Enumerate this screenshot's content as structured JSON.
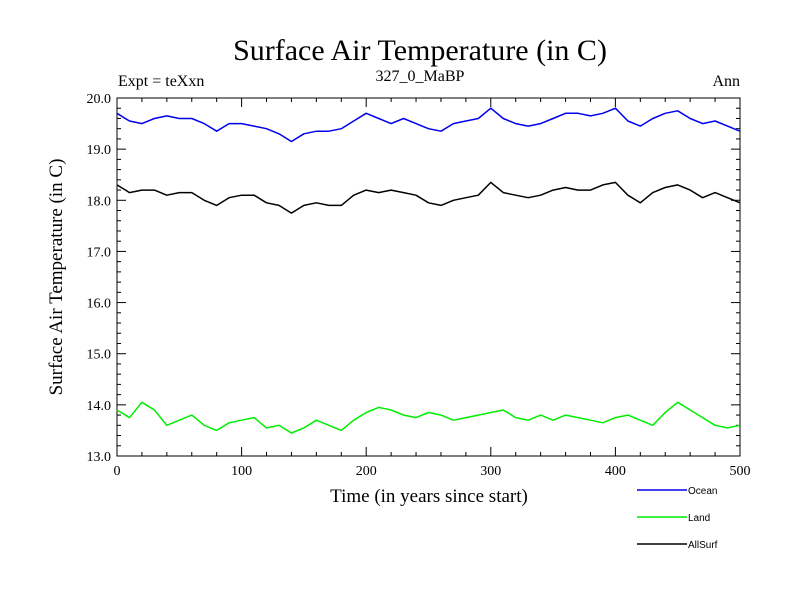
{
  "chart_data": {
    "type": "line",
    "title": "Surface Air Temperature (in C)",
    "experiment_label": "Expt = teXxn",
    "subtitle": "327_0_MaBP",
    "season": "Ann",
    "xlabel": "Time (in years since start)",
    "ylabel": "Surface Air Temperature (in C)",
    "xlim": [
      0,
      500
    ],
    "ylim": [
      13.0,
      20.0
    ],
    "xticks": [
      0,
      100,
      200,
      300,
      400,
      500
    ],
    "xtick_labels": [
      "0",
      "100",
      "200",
      "300",
      "400",
      "500"
    ],
    "yticks": [
      13.0,
      14.0,
      15.0,
      16.0,
      17.0,
      18.0,
      19.0,
      20.0
    ],
    "ytick_labels": [
      "13.0",
      "14.0",
      "15.0",
      "16.0",
      "17.0",
      "18.0",
      "19.0",
      "20.0"
    ],
    "legend_position": "below-right",
    "series": [
      {
        "name": "Ocean",
        "color": "#0000ee",
        "x": [
          0,
          10,
          20,
          30,
          40,
          50,
          60,
          70,
          80,
          90,
          100,
          110,
          120,
          130,
          140,
          150,
          160,
          170,
          180,
          190,
          200,
          210,
          220,
          230,
          240,
          250,
          260,
          270,
          280,
          290,
          300,
          310,
          320,
          330,
          340,
          350,
          360,
          370,
          380,
          390,
          400,
          410,
          420,
          430,
          440,
          450,
          460,
          470,
          480,
          490,
          500
        ],
        "values": [
          19.7,
          19.55,
          19.5,
          19.6,
          19.65,
          19.6,
          19.6,
          19.5,
          19.35,
          19.5,
          19.5,
          19.45,
          19.4,
          19.3,
          19.15,
          19.3,
          19.35,
          19.35,
          19.4,
          19.55,
          19.7,
          19.6,
          19.5,
          19.6,
          19.5,
          19.4,
          19.35,
          19.5,
          19.55,
          19.6,
          19.8,
          19.6,
          19.5,
          19.45,
          19.5,
          19.6,
          19.7,
          19.7,
          19.65,
          19.7,
          19.8,
          19.55,
          19.45,
          19.6,
          19.7,
          19.75,
          19.6,
          19.5,
          19.55,
          19.45,
          19.35
        ]
      },
      {
        "name": "Land",
        "color": "#00ee00",
        "x": [
          0,
          10,
          20,
          30,
          40,
          50,
          60,
          70,
          80,
          90,
          100,
          110,
          120,
          130,
          140,
          150,
          160,
          170,
          180,
          190,
          200,
          210,
          220,
          230,
          240,
          250,
          260,
          270,
          280,
          290,
          300,
          310,
          320,
          330,
          340,
          350,
          360,
          370,
          380,
          390,
          400,
          410,
          420,
          430,
          440,
          450,
          460,
          470,
          480,
          490,
          500
        ],
        "values": [
          13.9,
          13.75,
          14.05,
          13.9,
          13.6,
          13.7,
          13.8,
          13.6,
          13.5,
          13.65,
          13.7,
          13.75,
          13.55,
          13.6,
          13.45,
          13.55,
          13.7,
          13.6,
          13.5,
          13.7,
          13.85,
          13.95,
          13.9,
          13.8,
          13.75,
          13.85,
          13.8,
          13.7,
          13.75,
          13.8,
          13.85,
          13.9,
          13.75,
          13.7,
          13.8,
          13.7,
          13.8,
          13.75,
          13.7,
          13.65,
          13.75,
          13.8,
          13.7,
          13.6,
          13.85,
          14.05,
          13.9,
          13.75,
          13.6,
          13.55,
          13.6
        ]
      },
      {
        "name": "AllSurf",
        "color": "#000000",
        "x": [
          0,
          10,
          20,
          30,
          40,
          50,
          60,
          70,
          80,
          90,
          100,
          110,
          120,
          130,
          140,
          150,
          160,
          170,
          180,
          190,
          200,
          210,
          220,
          230,
          240,
          250,
          260,
          270,
          280,
          290,
          300,
          310,
          320,
          330,
          340,
          350,
          360,
          370,
          380,
          390,
          400,
          410,
          420,
          430,
          440,
          450,
          460,
          470,
          480,
          490,
          500
        ],
        "values": [
          18.3,
          18.15,
          18.2,
          18.2,
          18.1,
          18.15,
          18.15,
          18.0,
          17.9,
          18.05,
          18.1,
          18.1,
          17.95,
          17.9,
          17.75,
          17.9,
          17.95,
          17.9,
          17.9,
          18.1,
          18.2,
          18.15,
          18.2,
          18.15,
          18.1,
          17.95,
          17.9,
          18.0,
          18.05,
          18.1,
          18.35,
          18.15,
          18.1,
          18.05,
          18.1,
          18.2,
          18.25,
          18.2,
          18.2,
          18.3,
          18.35,
          18.1,
          17.95,
          18.15,
          18.25,
          18.3,
          18.2,
          18.05,
          18.15,
          18.05,
          17.95
        ]
      }
    ]
  }
}
